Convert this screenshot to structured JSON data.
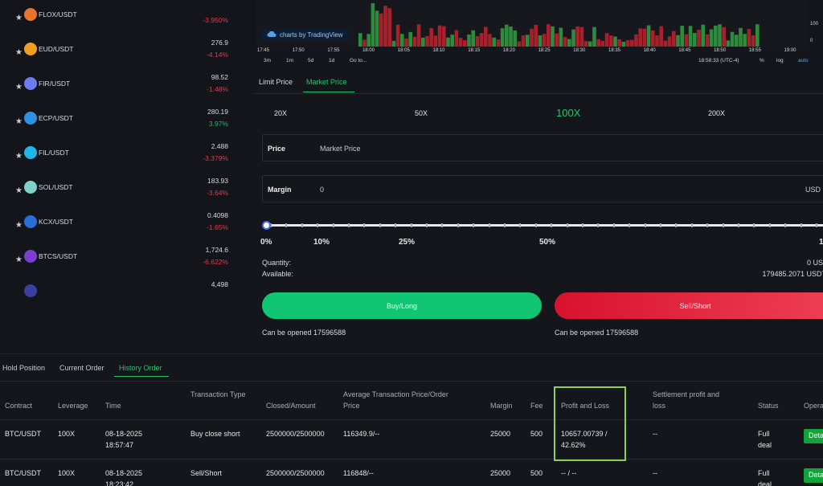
{
  "market": {
    "items": [
      {
        "name": "FLOX/USDT",
        "price": "",
        "change": "-3.950%",
        "dir": "neg",
        "logo_color": "#e8742f"
      },
      {
        "name": "EUD/USDT",
        "price": "276.9",
        "change": "-4.14%",
        "dir": "neg",
        "logo_color": "#f0a020"
      },
      {
        "name": "FIR/USDT",
        "price": "98.52",
        "change": "-1.48%",
        "dir": "neg",
        "logo_color": "#6b7cf0"
      },
      {
        "name": "ECP/USDT",
        "price": "280.19",
        "change": "3.97%",
        "dir": "pos",
        "logo_color": "#2f8fe0"
      },
      {
        "name": "FIL/USDT",
        "price": "2.488",
        "change": "-3.379%",
        "dir": "neg",
        "logo_color": "#1fb5e8"
      },
      {
        "name": "SOL/USDT",
        "price": "183.93",
        "change": "-3.64%",
        "dir": "neg",
        "logo_color": "#7fd0c8"
      },
      {
        "name": "KCX/USDT",
        "price": "0.4098",
        "change": "-1.65%",
        "dir": "neg",
        "logo_color": "#2a6fd8"
      },
      {
        "name": "BTCS/USDT",
        "price": "1,724.6",
        "change": "-6.622%",
        "dir": "neg",
        "logo_color": "#7a3fd0"
      },
      {
        "name": "",
        "price": "4,498",
        "change": "",
        "dir": "neg",
        "logo_color": "#3a3fa0"
      }
    ]
  },
  "chart": {
    "attribution": "charts by TradingView",
    "y_ticks": [
      "100",
      "0"
    ],
    "x_ticks": [
      "17:45",
      "17:50",
      "17:55",
      "18:00",
      "18:05",
      "18:10",
      "18:15",
      "18:20",
      "18:25",
      "18:30",
      "18:35",
      "18:40",
      "18:45",
      "18:50",
      "18:55",
      "19:00"
    ],
    "ranges": [
      "3m",
      "1m",
      "5d",
      "1d",
      "Go to..."
    ],
    "time": "18:58:33 (UTC-4)",
    "scale_options": [
      "%",
      "log",
      "auto"
    ],
    "colors": {
      "up": "#2e8b3e",
      "down": "#a8202b"
    }
  },
  "order": {
    "tabs": [
      "Limit Price",
      "Market Price"
    ],
    "active_tab": "Market Price",
    "leverage": [
      "20X",
      "50X",
      "100X",
      "200X"
    ],
    "active_leverage": "100X",
    "price_label": "Price",
    "price_value": "Market Price",
    "margin_label": "Margin",
    "margin_value": "0",
    "margin_unit": "USD",
    "slider_value": 0,
    "slider_marks": [
      "0%",
      "10%",
      "25%",
      "50%",
      "1"
    ],
    "quantity_label": "Quantity:",
    "quantity_value": "0 US",
    "available_label": "Available:",
    "available_value": "179485.2071 USDT",
    "buy_label": "Buy/Long",
    "sell_label": "Sell/Short",
    "buy_can_open": "Can be opened 17596588",
    "sell_can_open": "Can be opened 17596588"
  },
  "orders": {
    "tabs": [
      "Hold Position",
      "Current Order",
      "History Order"
    ],
    "active_tab": "History Order",
    "columns": [
      "Contract",
      "Leverage",
      "Time",
      "Transaction Type",
      "Closed/Amount",
      "Average Transaction Price/Order Price",
      "Margin",
      "Fee",
      "Profit and Loss",
      "Settlement profit and loss",
      "Status",
      "Opera"
    ],
    "rows": [
      {
        "contract": "BTC/USDT",
        "leverage": "100X",
        "date": "08-18-2025",
        "time": "18:57:47",
        "type": "Buy close short",
        "amount": "2500000/2500000",
        "price": "116349.9/--",
        "margin": "25000",
        "fee": "500",
        "pnl": "10657.00739 / 42.62%",
        "settlement": "--",
        "status": "Full deal",
        "action": "Deta"
      },
      {
        "contract": "BTC/USDT",
        "leverage": "100X",
        "date": "08-18-2025",
        "time": "18:23:42",
        "type": "Sell/Short",
        "amount": "2500000/2500000",
        "price": "116848/--",
        "margin": "25000",
        "fee": "500",
        "pnl": "-- / --",
        "settlement": "--",
        "status": "Full deal",
        "action": "Deta"
      }
    ]
  }
}
